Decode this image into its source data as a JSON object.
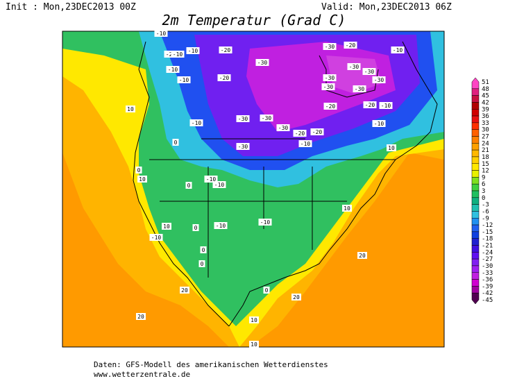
{
  "header": {
    "init": "Init : Mon,23DEC2013 00Z",
    "valid": "Valid: Mon,23DEC2013 06Z",
    "title": "2m Temperatur (Grad C)"
  },
  "map": {
    "contour_labels": [
      "-10",
      "-20",
      "-10",
      "-10",
      "-20",
      "-30",
      "-20",
      "-10",
      "-30",
      "-10",
      "-10",
      "-20",
      "-30",
      "-30",
      "-30",
      "-30",
      "-30",
      "-30",
      "10",
      "-20",
      "-20",
      "-10",
      "-10",
      "-30",
      "-30",
      "-30",
      "-10",
      "-20",
      "-20",
      "-30",
      "-10",
      "10",
      "0",
      "10",
      "-10",
      "-10",
      "10",
      "10",
      "0",
      "-10",
      "-10",
      "-10",
      "0",
      "0",
      "20",
      "20",
      "0",
      "20",
      "20",
      "10",
      "10",
      "0",
      "0"
    ]
  },
  "legend": {
    "levels": [
      51,
      48,
      45,
      42,
      39,
      36,
      33,
      30,
      27,
      24,
      21,
      18,
      15,
      12,
      9,
      6,
      3,
      0,
      -3,
      -6,
      -9,
      -12,
      -15,
      -18,
      -21,
      -24,
      -27,
      -30,
      -33,
      -36,
      -39,
      -42,
      -45
    ],
    "colors": [
      "#ff44c4",
      "#e0207f",
      "#c81040",
      "#b00000",
      "#d00000",
      "#e81010",
      "#ff3000",
      "#ff6000",
      "#ff8000",
      "#ffa000",
      "#ffb800",
      "#ffd000",
      "#ffe800",
      "#e8f000",
      "#80e020",
      "#40d040",
      "#20c060",
      "#10b080",
      "#20c0b0",
      "#30c0e0",
      "#2090f0",
      "#2060f0",
      "#1040e0",
      "#2020d0",
      "#4010e0",
      "#6010f0",
      "#8020f0",
      "#a020f0",
      "#c020e0",
      "#d000d0",
      "#a000a0",
      "#500050"
    ]
  },
  "footer": {
    "source": "Daten: GFS-Modell des amerikanischen Wetterdienstes",
    "website": "www.wetterzentrale.de"
  }
}
